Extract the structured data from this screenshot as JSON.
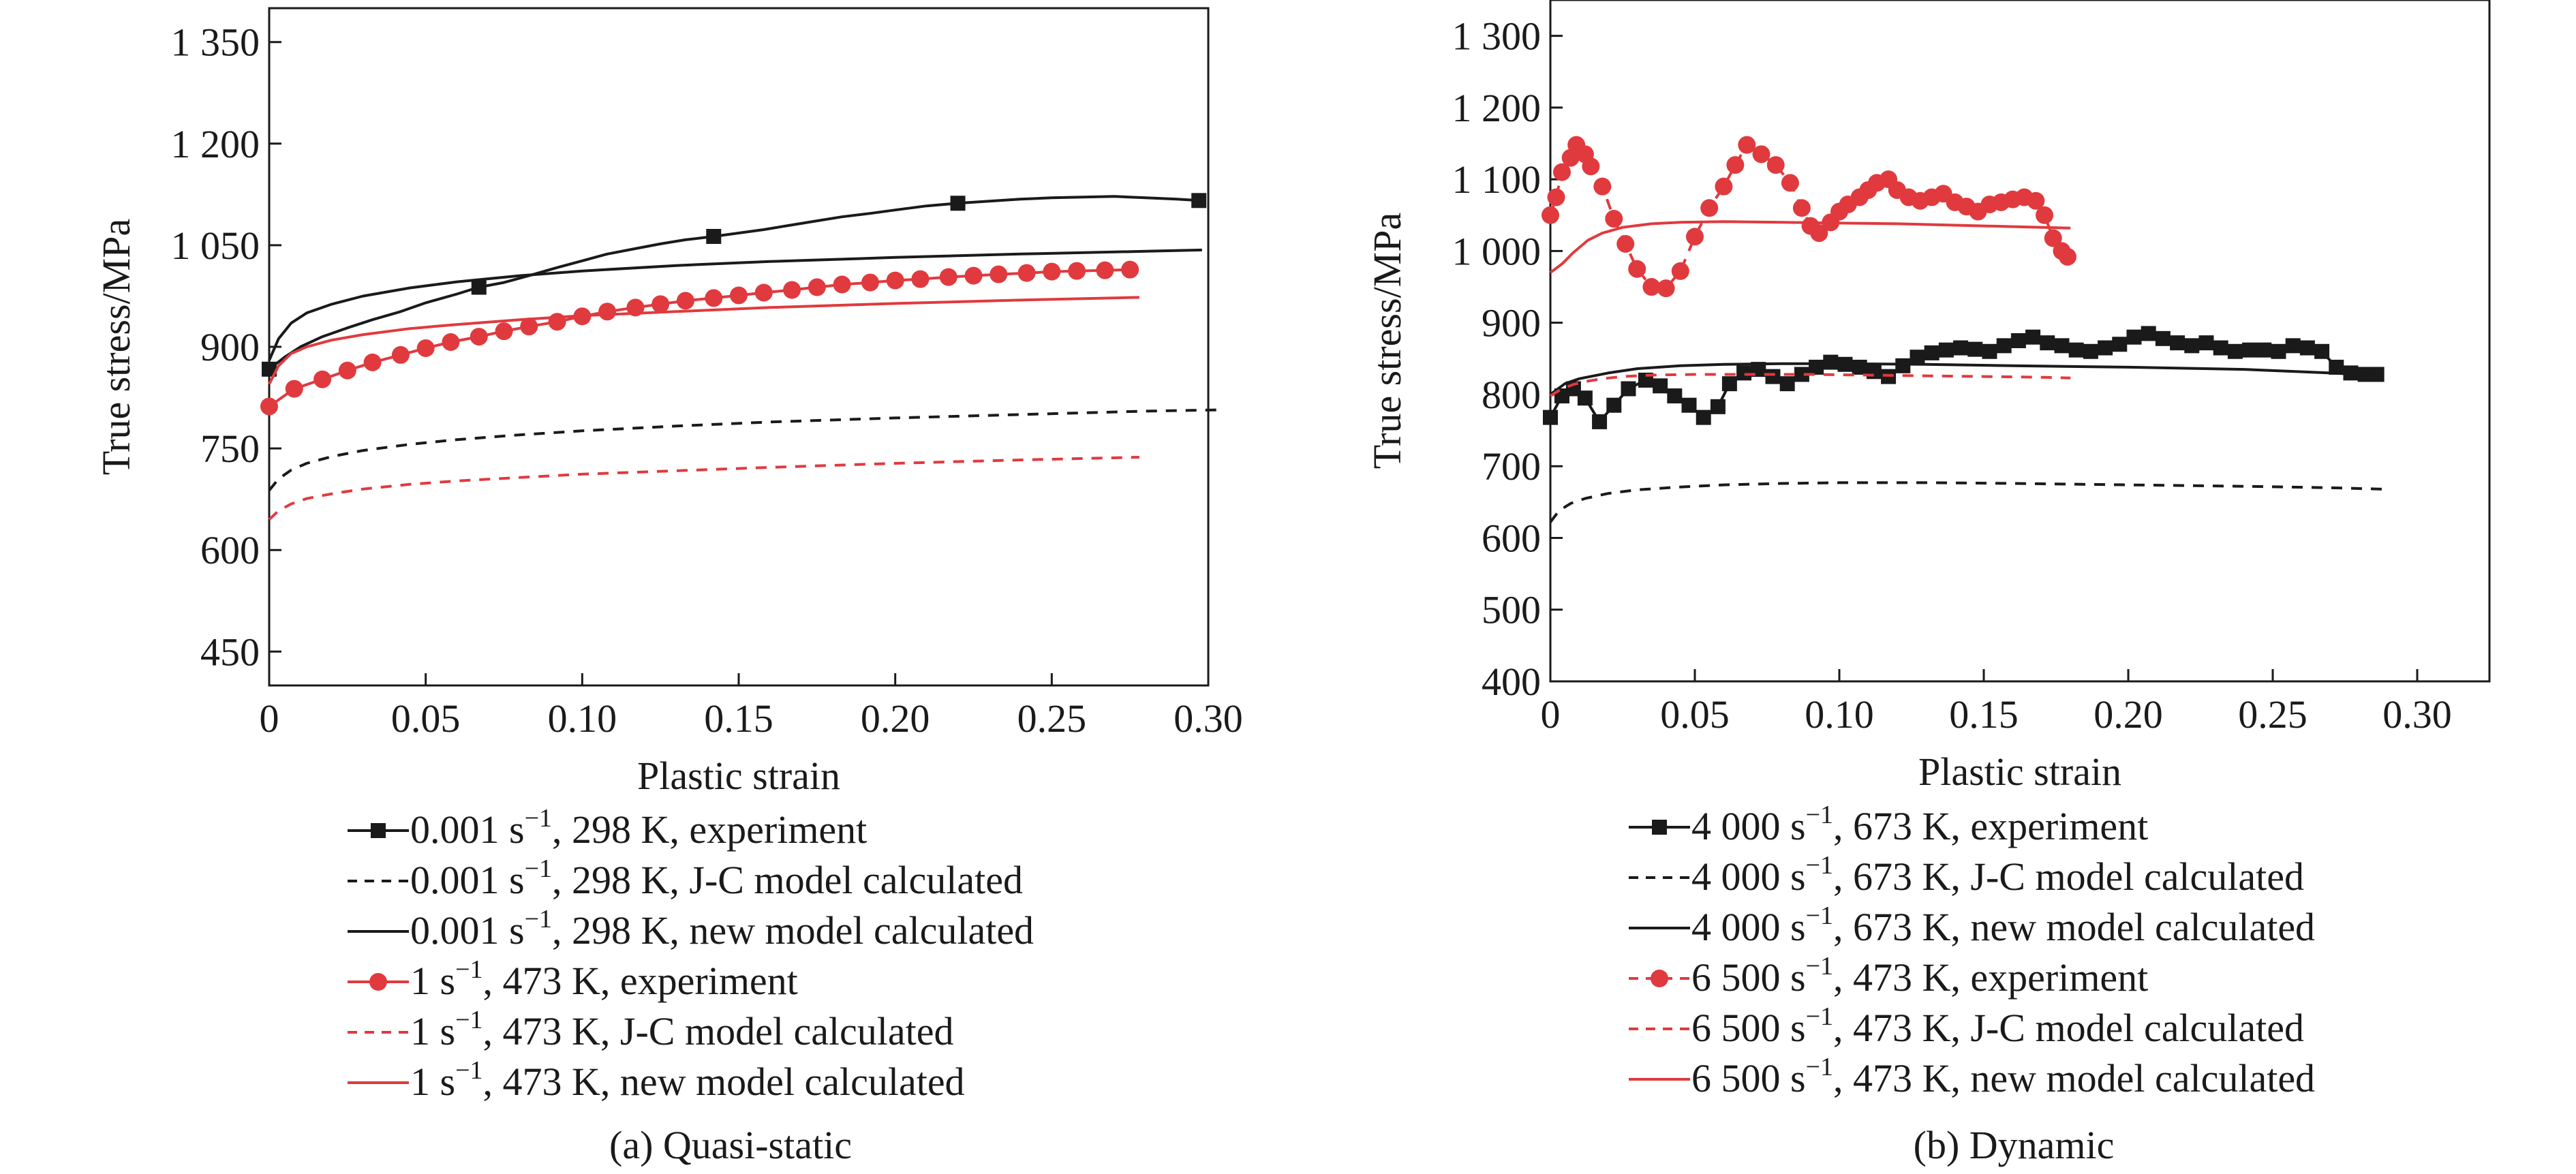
{
  "colors": {
    "black": "#1a1a1a",
    "red": "#e03a3e"
  },
  "chart_data": [
    {
      "type": "line",
      "caption": "(a) Quasi-static",
      "xlabel": "Plastic strain",
      "ylabel": "True stress/MPa",
      "xlim": [
        0,
        0.3
      ],
      "ylim": [
        400,
        1400
      ],
      "xticks": [
        0,
        0.05,
        0.1,
        0.15,
        0.2,
        0.25,
        0.3
      ],
      "xtick_labels": [
        "0",
        "0.05",
        "0.10",
        "0.15",
        "0.20",
        "0.25",
        "0.30"
      ],
      "yticks": [
        450,
        600,
        750,
        900,
        1050,
        1200,
        1350
      ],
      "ytick_labels": [
        "450",
        "600",
        "750",
        "900",
        "1 050",
        "1 200",
        "1 350"
      ],
      "grid": false,
      "legend_placement": "below",
      "series": [
        {
          "rate_num": "0.001 s",
          "rate_exp": "−1",
          "rest": ", 298 K, experiment",
          "color_key": "black",
          "style": "solid",
          "marker": "square",
          "marker_every": 9,
          "x": [
            0,
            0.005,
            0.01,
            0.017,
            0.025,
            0.033,
            0.042,
            0.05,
            0.06,
            0.067,
            0.075,
            0.083,
            0.092,
            0.1,
            0.108,
            0.117,
            0.125,
            0.133,
            0.142,
            0.15,
            0.158,
            0.167,
            0.175,
            0.183,
            0.192,
            0.2,
            0.21,
            0.22,
            0.23,
            0.24,
            0.25,
            0.26,
            0.27,
            0.28,
            0.29,
            0.297
          ],
          "y": [
            867,
            885,
            900,
            915,
            928,
            940,
            952,
            965,
            978,
            988,
            995,
            1005,
            1017,
            1027,
            1037,
            1045,
            1052,
            1058,
            1063,
            1068,
            1073,
            1080,
            1086,
            1092,
            1097,
            1102,
            1108,
            1112,
            1115,
            1118,
            1120,
            1121,
            1122,
            1120,
            1118,
            1116
          ]
        },
        {
          "rate_num": "0.001 s",
          "rate_exp": "−1",
          "rest": ", 298 K, J-C model calculated",
          "color_key": "black",
          "style": "dashed",
          "marker": "none",
          "x": [
            0,
            0.003,
            0.007,
            0.012,
            0.02,
            0.03,
            0.045,
            0.06,
            0.08,
            0.1,
            0.13,
            0.16,
            0.2,
            0.24,
            0.28,
            0.305
          ],
          "y": [
            688,
            705,
            718,
            728,
            738,
            747,
            756,
            763,
            770,
            776,
            783,
            789,
            795,
            800,
            805,
            807
          ]
        },
        {
          "rate_num": "0.001 s",
          "rate_exp": "−1",
          "rest": ", 298 K, new model calculated",
          "color_key": "black",
          "style": "solid",
          "marker": "none",
          "x": [
            0,
            0.003,
            0.007,
            0.012,
            0.02,
            0.03,
            0.045,
            0.06,
            0.08,
            0.1,
            0.13,
            0.16,
            0.2,
            0.24,
            0.28,
            0.298
          ],
          "y": [
            880,
            912,
            935,
            950,
            963,
            975,
            987,
            996,
            1005,
            1012,
            1020,
            1026,
            1032,
            1037,
            1041,
            1043
          ]
        },
        {
          "rate_num": "1 s",
          "rate_exp": "−1",
          "rest": ", 473 K, experiment",
          "color_key": "red",
          "style": "solid",
          "marker": "circle",
          "marker_every": 1,
          "x": [
            0,
            0.008,
            0.017,
            0.025,
            0.033,
            0.042,
            0.05,
            0.058,
            0.067,
            0.075,
            0.083,
            0.092,
            0.1,
            0.108,
            0.117,
            0.125,
            0.133,
            0.142,
            0.15,
            0.158,
            0.167,
            0.175,
            0.183,
            0.192,
            0.2,
            0.208,
            0.217,
            0.225,
            0.233,
            0.242,
            0.25,
            0.258,
            0.267,
            0.275
          ],
          "y": [
            812,
            838,
            852,
            865,
            877,
            888,
            898,
            907,
            915,
            923,
            930,
            937,
            945,
            952,
            958,
            963,
            968,
            972,
            976,
            980,
            984,
            988,
            992,
            995,
            998,
            1000,
            1003,
            1005,
            1007,
            1009,
            1011,
            1012,
            1013,
            1014
          ]
        },
        {
          "rate_num": "1 s",
          "rate_exp": "−1",
          "rest": ", 473 K, J-C model calculated",
          "color_key": "red",
          "style": "dashed",
          "marker": "none",
          "x": [
            0,
            0.003,
            0.007,
            0.012,
            0.02,
            0.03,
            0.045,
            0.06,
            0.08,
            0.1,
            0.13,
            0.16,
            0.2,
            0.24,
            0.278
          ],
          "y": [
            645,
            658,
            668,
            676,
            683,
            690,
            697,
            702,
            707,
            712,
            717,
            722,
            728,
            733,
            737
          ]
        },
        {
          "rate_num": "1 s",
          "rate_exp": "−1",
          "rest": ", 473 K, new model calculated",
          "color_key": "red",
          "style": "solid",
          "marker": "none",
          "x": [
            0,
            0.003,
            0.007,
            0.012,
            0.02,
            0.03,
            0.045,
            0.06,
            0.08,
            0.1,
            0.13,
            0.16,
            0.2,
            0.24,
            0.278
          ],
          "y": [
            845,
            872,
            890,
            900,
            910,
            918,
            927,
            933,
            940,
            946,
            952,
            958,
            964,
            969,
            973
          ]
        }
      ]
    },
    {
      "type": "line",
      "caption": "(b) Dynamic",
      "xlabel": "Plastic strain",
      "ylabel": "True stress/MPa",
      "xlim": [
        0,
        0.325
      ],
      "ylim": [
        400,
        1350
      ],
      "xticks": [
        0,
        0.05,
        0.1,
        0.15,
        0.2,
        0.25,
        0.3
      ],
      "xtick_labels": [
        "0",
        "0.05",
        "0.10",
        "0.15",
        "0.20",
        "0.25",
        "0.30"
      ],
      "yticks": [
        400,
        500,
        600,
        700,
        800,
        900,
        1000,
        1100,
        1200,
        1300
      ],
      "ytick_labels": [
        "400",
        "500",
        "600",
        "700",
        "800",
        "900",
        "1 000",
        "1 100",
        "1 200",
        "1 300"
      ],
      "grid": false,
      "legend_placement": "below",
      "series": [
        {
          "rate_num": "4 000 s",
          "rate_exp": "−1",
          "rest": ", 673 K, experiment",
          "color_key": "black",
          "style": "solid",
          "marker": "square",
          "marker_every": 1,
          "x": [
            0,
            0.004,
            0.008,
            0.012,
            0.017,
            0.022,
            0.027,
            0.033,
            0.038,
            0.043,
            0.048,
            0.053,
            0.058,
            0.062,
            0.067,
            0.072,
            0.077,
            0.082,
            0.087,
            0.092,
            0.097,
            0.102,
            0.107,
            0.112,
            0.117,
            0.122,
            0.127,
            0.132,
            0.137,
            0.142,
            0.147,
            0.152,
            0.157,
            0.162,
            0.167,
            0.172,
            0.177,
            0.182,
            0.187,
            0.192,
            0.197,
            0.202,
            0.207,
            0.212,
            0.217,
            0.222,
            0.227,
            0.232,
            0.237,
            0.242,
            0.247,
            0.252,
            0.257,
            0.262,
            0.267,
            0.272,
            0.277,
            0.282,
            0.286
          ],
          "y": [
            768,
            798,
            808,
            795,
            762,
            785,
            808,
            820,
            812,
            798,
            785,
            768,
            783,
            815,
            830,
            835,
            825,
            815,
            828,
            838,
            845,
            842,
            838,
            832,
            825,
            840,
            852,
            858,
            862,
            865,
            863,
            860,
            868,
            875,
            880,
            872,
            868,
            862,
            860,
            865,
            870,
            880,
            885,
            878,
            872,
            868,
            872,
            865,
            860,
            862,
            862,
            860,
            868,
            865,
            860,
            838,
            830,
            828,
            828
          ]
        },
        {
          "rate_num": "4 000 s",
          "rate_exp": "−1",
          "rest": ", 673 K, J-C model calculated",
          "color_key": "black",
          "style": "dashed",
          "marker": "none",
          "x": [
            0,
            0.003,
            0.007,
            0.012,
            0.02,
            0.03,
            0.045,
            0.06,
            0.08,
            0.1,
            0.13,
            0.16,
            0.2,
            0.24,
            0.27,
            0.288
          ],
          "y": [
            622,
            638,
            648,
            655,
            662,
            667,
            671,
            674,
            676,
            677,
            677,
            676,
            674,
            672,
            670,
            668
          ]
        },
        {
          "rate_num": "4 000 s",
          "rate_exp": "−1",
          "rest": ", 673 K, new model calculated",
          "color_key": "black",
          "style": "solid",
          "marker": "none",
          "x": [
            0,
            0.005,
            0.01,
            0.02,
            0.03,
            0.045,
            0.06,
            0.08,
            0.1,
            0.13,
            0.16,
            0.2,
            0.24,
            0.27,
            0.285
          ],
          "y": [
            800,
            815,
            822,
            830,
            836,
            840,
            842,
            843,
            843,
            842,
            840,
            838,
            835,
            830,
            827
          ]
        },
        {
          "rate_num": "6 500 s",
          "rate_exp": "−1",
          "rest": ", 473 K, experiment",
          "color_key": "red",
          "style": "dashed",
          "marker": "circle",
          "marker_every": 1,
          "x": [
            0,
            0.002,
            0.004,
            0.007,
            0.009,
            0.012,
            0.014,
            0.018,
            0.022,
            0.026,
            0.03,
            0.035,
            0.04,
            0.045,
            0.05,
            0.055,
            0.06,
            0.064,
            0.068,
            0.073,
            0.078,
            0.083,
            0.087,
            0.09,
            0.093,
            0.097,
            0.1,
            0.103,
            0.107,
            0.11,
            0.113,
            0.117,
            0.12,
            0.124,
            0.128,
            0.132,
            0.136,
            0.14,
            0.144,
            0.148,
            0.152,
            0.156,
            0.16,
            0.164,
            0.168,
            0.171,
            0.174,
            0.177,
            0.179
          ],
          "y": [
            1050,
            1075,
            1110,
            1130,
            1148,
            1135,
            1118,
            1090,
            1045,
            1010,
            975,
            950,
            948,
            972,
            1020,
            1060,
            1090,
            1120,
            1148,
            1135,
            1120,
            1095,
            1060,
            1035,
            1025,
            1040,
            1055,
            1065,
            1075,
            1085,
            1095,
            1100,
            1085,
            1075,
            1070,
            1075,
            1080,
            1068,
            1062,
            1055,
            1065,
            1068,
            1072,
            1075,
            1070,
            1050,
            1018,
            1000,
            992
          ]
        },
        {
          "rate_num": "6 500 s",
          "rate_exp": "−1",
          "rest": ", 473 K, J-C model calculated",
          "color_key": "red",
          "style": "dashed",
          "marker": "none",
          "x": [
            0,
            0.004,
            0.008,
            0.012,
            0.018,
            0.025,
            0.035,
            0.05,
            0.07,
            0.09,
            0.11,
            0.13,
            0.15,
            0.17,
            0.18
          ],
          "y": [
            798,
            808,
            814,
            818,
            822,
            825,
            827,
            828,
            828,
            828,
            827,
            826,
            825,
            824,
            823
          ]
        },
        {
          "rate_num": "6 500 s",
          "rate_exp": "−1",
          "rest": ", 473 K, new model calculated",
          "color_key": "red",
          "style": "solid",
          "marker": "none",
          "x": [
            0,
            0.004,
            0.008,
            0.013,
            0.018,
            0.025,
            0.035,
            0.045,
            0.06,
            0.08,
            0.1,
            0.12,
            0.14,
            0.16,
            0.18
          ],
          "y": [
            970,
            982,
            998,
            1015,
            1025,
            1033,
            1038,
            1040,
            1041,
            1040,
            1039,
            1038,
            1036,
            1034,
            1032
          ]
        }
      ]
    }
  ]
}
